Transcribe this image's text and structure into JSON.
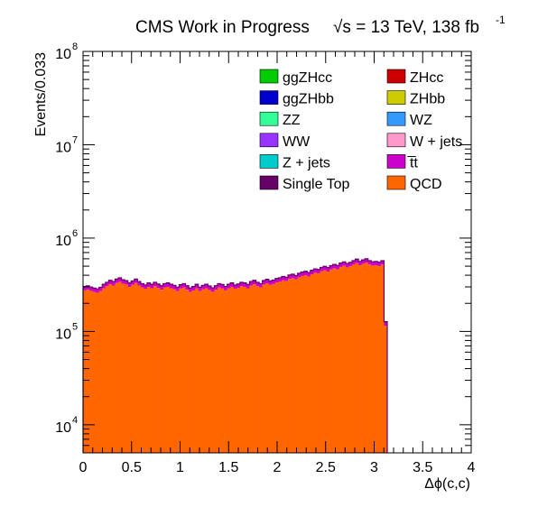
{
  "chart_data": {
    "type": "histogram-stacked",
    "title": "CMS Work in Progress",
    "title_energy": "√s = 13 TeV, 138 fb",
    "title_lumi_exp": "-1",
    "xlabel": "Δϕ(c,c)",
    "ylabel": "Events/0.033",
    "x_range": [
      0,
      4
    ],
    "y_range": [
      5000,
      100000000
    ],
    "y_scale": "log",
    "bin_width": 0.033,
    "x_ticks": [
      0,
      0.5,
      1,
      1.5,
      2,
      2.5,
      3,
      3.5,
      4
    ],
    "x_tick_labels": [
      "0",
      "0.5",
      "1",
      "1.5",
      "2",
      "2.5",
      "3",
      "3.5",
      "4"
    ],
    "y_ticks_major": [
      10000,
      100000,
      1000000,
      10000000,
      100000000
    ],
    "y_tick_labels": [
      {
        "base": "10",
        "exp": "4"
      },
      {
        "base": "10",
        "exp": "5"
      },
      {
        "base": "10",
        "exp": "6"
      },
      {
        "base": "10",
        "exp": "7"
      },
      {
        "base": "10",
        "exp": "8"
      }
    ],
    "legend_position": "top-right",
    "legend": [
      {
        "name": "ggZHcc",
        "color": "#00cc00"
      },
      {
        "name": "ZHcc",
        "color": "#cc0000"
      },
      {
        "name": "ggZHbb",
        "color": "#0000cc"
      },
      {
        "name": "ZHbb",
        "color": "#cccc00"
      },
      {
        "name": "ZZ",
        "color": "#33ff99"
      },
      {
        "name": "WZ",
        "color": "#3399ff"
      },
      {
        "name": "WW",
        "color": "#9933ff"
      },
      {
        "name": "W + jets",
        "color": "#ff99cc"
      },
      {
        "name": "Z + jets",
        "color": "#00cccc"
      },
      {
        "name": "t̅t",
        "color": "#cc00cc"
      },
      {
        "name": "Single Top",
        "color": "#660066"
      },
      {
        "name": "QCD",
        "color": "#ff6600"
      }
    ],
    "colors": {
      "qcd_fill": "#ff6600",
      "ttbar_fill": "#cc00cc",
      "single_top": "#660066"
    },
    "series": [
      {
        "name": "QCD",
        "values": [
          275000,
          280000,
          272000,
          265000,
          260000,
          270000,
          290000,
          305000,
          320000,
          310000,
          330000,
          340000,
          325000,
          318000,
          300000,
          315000,
          330000,
          310000,
          295000,
          285000,
          300000,
          290000,
          305000,
          292000,
          280000,
          295000,
          300000,
          290000,
          282000,
          270000,
          288000,
          295000,
          280000,
          265000,
          275000,
          290000,
          270000,
          282000,
          290000,
          278000,
          266000,
          280000,
          295000,
          288000,
          275000,
          290000,
          300000,
          285000,
          292000,
          305000,
          300000,
          288000,
          310000,
          320000,
          305000,
          295000,
          318000,
          328000,
          315000,
          322000,
          335000,
          340000,
          352000,
          345000,
          365000,
          372000,
          360000,
          380000,
          392000,
          400000,
          388000,
          410000,
          425000,
          418000,
          440000,
          452000,
          438000,
          460000,
          475000,
          462000,
          490000,
          505000,
          485000,
          498000,
          520000,
          540000,
          510000,
          530000,
          545000,
          520000,
          505000,
          510000,
          500000,
          520000,
          115000
        ]
      },
      {
        "name": "t̅t",
        "values": [
          28000,
          28000,
          27000,
          26000,
          26000,
          27000,
          30000,
          31000,
          33000,
          32000,
          34000,
          35000,
          33000,
          32000,
          31000,
          32000,
          34000,
          32000,
          30000,
          29000,
          31000,
          30000,
          31000,
          30000,
          29000,
          30000,
          31000,
          30000,
          29000,
          28000,
          29000,
          30000,
          29000,
          27000,
          28000,
          30000,
          28000,
          29000,
          30000,
          29000,
          27000,
          29000,
          30000,
          30000,
          28000,
          30000,
          31000,
          29000,
          30000,
          31000,
          31000,
          30000,
          32000,
          33000,
          31000,
          30000,
          33000,
          34000,
          32000,
          33000,
          34000,
          35000,
          36000,
          35000,
          37000,
          38000,
          37000,
          39000,
          40000,
          41000,
          40000,
          42000,
          43000,
          43000,
          45000,
          46000,
          45000,
          47000,
          48000,
          47000,
          50000,
          51000,
          49000,
          51000,
          53000,
          55000,
          52000,
          54000,
          56000,
          53000,
          52000,
          52000,
          51000,
          53000,
          12000
        ]
      }
    ]
  }
}
